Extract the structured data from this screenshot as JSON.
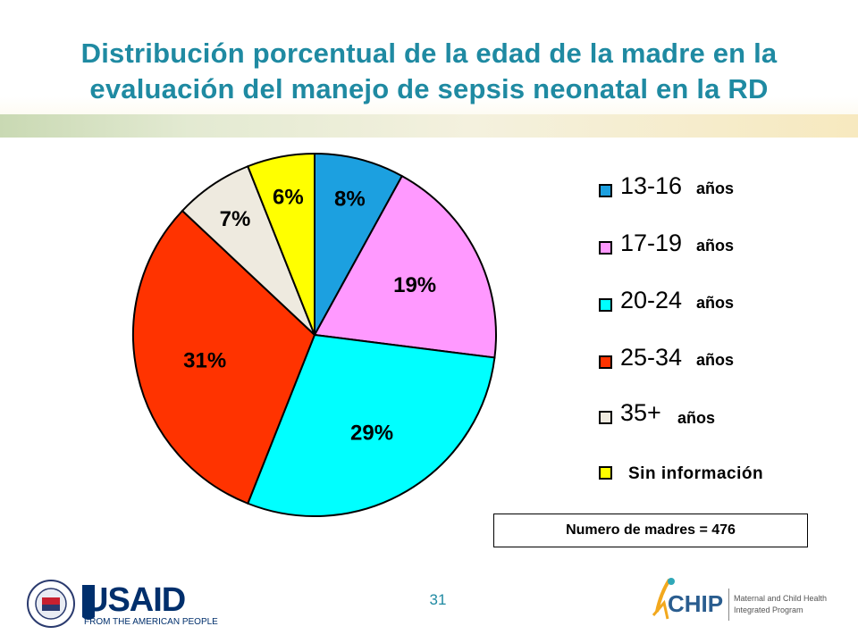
{
  "title": {
    "line1": "Distribución porcentual de la edad de la madre en la",
    "line2": "evaluación del manejo de sepsis neonatal en la RD"
  },
  "chart_data": {
    "type": "pie",
    "slices": [
      {
        "category": "13-16",
        "value": 8,
        "label": "8%",
        "color": "#1ca0e0"
      },
      {
        "category": "17-19",
        "value": 19,
        "label": "19%",
        "color": "#ff99ff"
      },
      {
        "category": "20-24",
        "value": 29,
        "label": "29%",
        "color": "#00ffff"
      },
      {
        "category": "25-34",
        "value": 31,
        "label": "31%",
        "color": "#ff3300"
      },
      {
        "category": "35+",
        "value": 7,
        "label": "7%",
        "color": "#eeeadf"
      },
      {
        "category": "Sin información",
        "value": 6,
        "label": "6%",
        "color": "#ffff00"
      }
    ],
    "legend": [
      {
        "range": "13-16",
        "suffix": "años",
        "color": "#1ca0e0"
      },
      {
        "range": "17-19",
        "suffix": "años",
        "color": "#ff99ff"
      },
      {
        "range": "20-24",
        "suffix": "años",
        "color": "#00ffff"
      },
      {
        "range": "25-34",
        "suffix": "años",
        "color": "#ff3300"
      },
      {
        "range": "35+",
        "suffix": "años",
        "color": "#eeeadf"
      },
      {
        "range": "",
        "suffix": "Sin información",
        "color": "#ffff00"
      }
    ],
    "legend_position": "right"
  },
  "note": "Numero de madres = 476",
  "page_number": "31",
  "logos": {
    "usaid": "USAID",
    "usaid_tagline": "FROM THE AMERICAN PEOPLE",
    "seal_text": "UNITED STATES AGENCY INTERNATIONAL DEVELOPMENT",
    "chip": "CHIP",
    "chip_line1": "Maternal and Child Health",
    "chip_line2": "Integrated Program"
  }
}
